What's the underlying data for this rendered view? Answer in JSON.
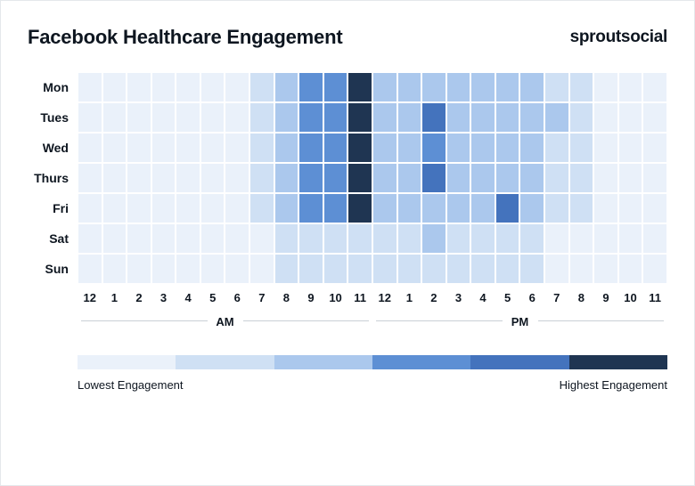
{
  "title": "Facebook Healthcare Engagement",
  "brand_prefix": "sprout",
  "brand_suffix": "social",
  "chart": {
    "type": "heatmap",
    "days": [
      "Mon",
      "Tues",
      "Wed",
      "Thurs",
      "Fri",
      "Sat",
      "Sun"
    ],
    "hours": [
      "12",
      "1",
      "2",
      "3",
      "4",
      "5",
      "6",
      "7",
      "8",
      "9",
      "10",
      "11",
      "12",
      "1",
      "2",
      "3",
      "4",
      "5",
      "6",
      "7",
      "8",
      "9",
      "10",
      "11"
    ],
    "am_label": "AM",
    "pm_label": "PM",
    "scale_colors": [
      "#eaf1fa",
      "#cfe0f4",
      "#abc8ed",
      "#5d8fd4",
      "#4473bd",
      "#1f3552"
    ],
    "values": [
      [
        0,
        0,
        0,
        0,
        0,
        0,
        0,
        1,
        2,
        3,
        3,
        5,
        2,
        2,
        2,
        2,
        2,
        2,
        2,
        1,
        1,
        0,
        0,
        0
      ],
      [
        0,
        0,
        0,
        0,
        0,
        0,
        0,
        1,
        2,
        3,
        3,
        5,
        2,
        2,
        4,
        2,
        2,
        2,
        2,
        2,
        1,
        0,
        0,
        0
      ],
      [
        0,
        0,
        0,
        0,
        0,
        0,
        0,
        1,
        2,
        3,
        3,
        5,
        2,
        2,
        3,
        2,
        2,
        2,
        2,
        1,
        1,
        0,
        0,
        0
      ],
      [
        0,
        0,
        0,
        0,
        0,
        0,
        0,
        1,
        2,
        3,
        3,
        5,
        2,
        2,
        4,
        2,
        2,
        2,
        2,
        1,
        1,
        0,
        0,
        0
      ],
      [
        0,
        0,
        0,
        0,
        0,
        0,
        0,
        1,
        2,
        3,
        3,
        5,
        2,
        2,
        2,
        2,
        2,
        4,
        2,
        1,
        1,
        0,
        0,
        0
      ],
      [
        0,
        0,
        0,
        0,
        0,
        0,
        0,
        0,
        1,
        1,
        1,
        1,
        1,
        1,
        2,
        1,
        1,
        1,
        1,
        0,
        0,
        0,
        0,
        0
      ],
      [
        0,
        0,
        0,
        0,
        0,
        0,
        0,
        0,
        1,
        1,
        1,
        1,
        1,
        1,
        1,
        1,
        1,
        1,
        1,
        0,
        0,
        0,
        0,
        0
      ]
    ],
    "background_color": "#ffffff",
    "text_color": "#0e1620",
    "border_color": "#e4e8eb"
  },
  "legend": {
    "low_label": "Lowest Engagement",
    "high_label": "Highest Engagement",
    "colors": [
      "#eaf1fa",
      "#cfe0f4",
      "#abc8ed",
      "#5d8fd4",
      "#4473bd",
      "#1f3552"
    ]
  }
}
